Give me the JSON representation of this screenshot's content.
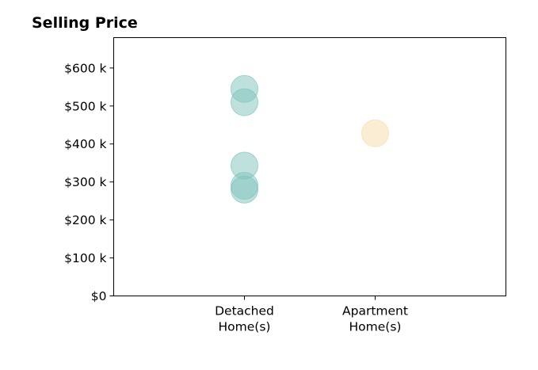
{
  "chart_data": {
    "type": "scatter",
    "title": "Selling Price",
    "xlabel": "",
    "ylabel": "",
    "categories": [
      {
        "line1": "Detached",
        "line2": "Home(s)"
      },
      {
        "line1": "Apartment",
        "line2": "Home(s)"
      }
    ],
    "xlim": [
      -1,
      2
    ],
    "ylim": [
      0,
      680000
    ],
    "y_ticks": [
      {
        "value": 0,
        "label": "$0"
      },
      {
        "value": 100000,
        "label": "$100 k"
      },
      {
        "value": 200000,
        "label": "$200 k"
      },
      {
        "value": 300000,
        "label": "$300 k"
      },
      {
        "value": 400000,
        "label": "$400 k"
      },
      {
        "value": 500000,
        "label": "$500 k"
      },
      {
        "value": 600000,
        "label": "$600 k"
      }
    ],
    "grid": false,
    "legend": "none",
    "series": [
      {
        "category_index": 0,
        "color": "#7fc4bc",
        "opacity": 0.5,
        "values": [
          545000,
          510000,
          343000,
          290000,
          280000
        ]
      },
      {
        "category_index": 1,
        "color": "#f6e1b5",
        "opacity": 0.6,
        "values": [
          428000
        ]
      }
    ]
  }
}
